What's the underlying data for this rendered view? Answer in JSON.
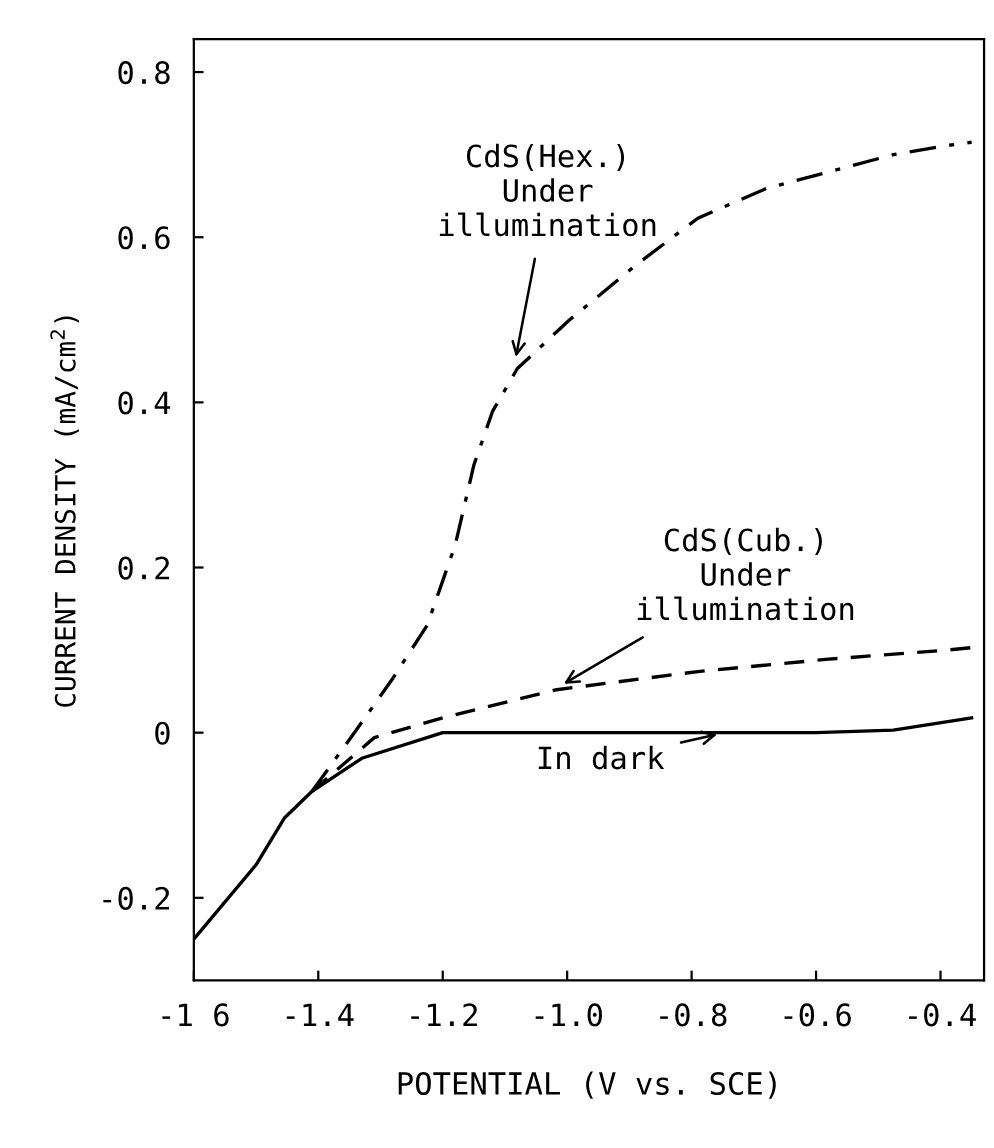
{
  "chart_data": {
    "type": "line",
    "xlabel": "POTENTIAL (V vs. SCE)",
    "ylabel": "CURRENT DENSITY (mA/cm$^{2}$)",
    "xlim": [
      -1.6,
      -0.33
    ],
    "ylim": [
      -0.3,
      0.84
    ],
    "xticks": [
      {
        "value": -1.6,
        "label": "-1 6"
      },
      -1.4,
      -1.2,
      {
        "value": -1.0,
        "label": "-1.0"
      },
      -0.8,
      -0.6,
      -0.4
    ],
    "yticks": [
      -0.2,
      0,
      0.2,
      0.4,
      0.6,
      0.8
    ],
    "grid": false,
    "series": [
      {
        "color": "#000000",
        "line_style": "solid",
        "x": [
          -1.6,
          -1.5,
          -1.454,
          -1.41,
          -1.33,
          -1.2,
          -1.0,
          -0.8,
          -0.6,
          -0.476,
          -0.35
        ],
        "values": [
          -0.25,
          -0.16,
          -0.103,
          -0.071,
          -0.031,
          0,
          0,
          0,
          0,
          0.003,
          0.018
        ]
      },
      {
        "color": "#000000",
        "line_style": "dashed",
        "x": [
          -1.41,
          -1.31,
          -1.2,
          -1.017,
          -0.79,
          -0.58,
          -0.39,
          -0.35
        ],
        "values": [
          -0.071,
          -0.006,
          0.018,
          0.052,
          0.074,
          0.089,
          0.1,
          0.103
        ]
      },
      {
        "color": "#000000",
        "line_style": "dashdot",
        "x": [
          -1.41,
          -1.34,
          -1.28,
          -1.225,
          -1.18,
          -1.15,
          -1.12,
          -1.08,
          -0.996,
          -0.89,
          -0.79,
          -0.68,
          -0.58,
          -0.476,
          -0.39,
          -0.35
        ],
        "values": [
          -0.071,
          0.002,
          0.066,
          0.13,
          0.227,
          0.324,
          0.389,
          0.441,
          0.5,
          0.566,
          0.623,
          0.659,
          0.679,
          0.7,
          0.711,
          0.715
        ]
      }
    ],
    "annotations": [
      {
        "text": "CdS(Hex.)\nUnder\nillumination",
        "x": -1.085,
        "y": 0.445
      },
      {
        "text": "CdS(Cub.)\nUnder\nillumination",
        "x": -1.017,
        "y": 0.054
      },
      {
        "text": "In dark",
        "x": -0.746,
        "y": 0.0
      }
    ]
  }
}
